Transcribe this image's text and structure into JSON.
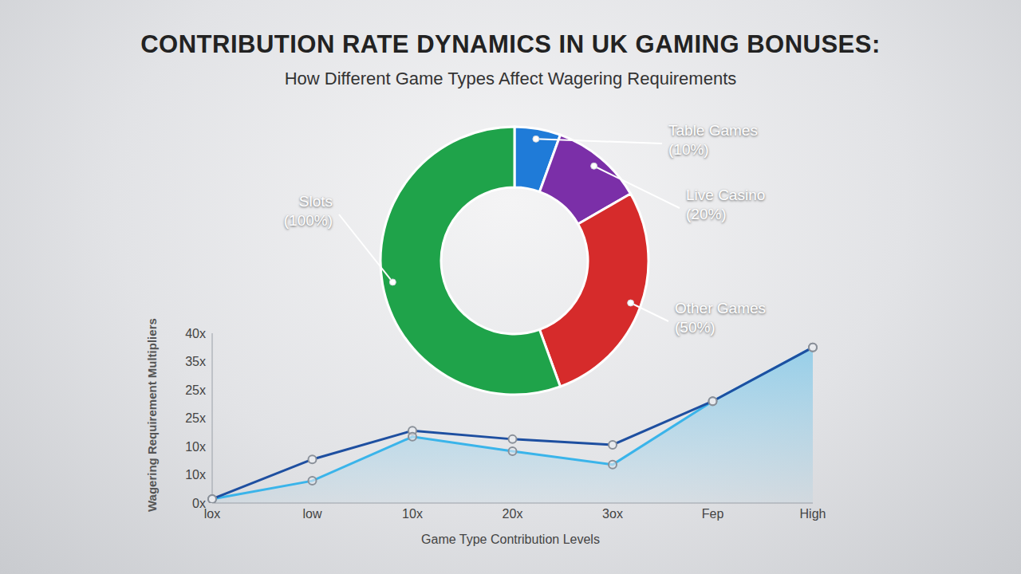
{
  "chart_data": [
    {
      "type": "pie",
      "title": "CONTRIBUTION RATE DYNAMICS IN UK GAMING BONUSES:",
      "subtitle": "How Different Game Types Affect Wagering Requirements",
      "categories": [
        "Table Games",
        "Live Casino",
        "Other Games",
        "Slots"
      ],
      "values": [
        10,
        20,
        50,
        100
      ],
      "value_labels": [
        "(10%)",
        "(20%)",
        "(50%)",
        "(100%)"
      ],
      "colors": [
        "#1f7bd8",
        "#7b2fa8",
        "#d62b2b",
        "#1fa34a"
      ],
      "data_labels": true
    },
    {
      "type": "line",
      "x_label": "Game Type Contribution Levels",
      "y_label": "Wagering Requirement Multipliers",
      "categories": [
        "lox",
        "low",
        "10x",
        "20x",
        "3ox",
        "Fep",
        "High"
      ],
      "ylim": [
        0,
        42
      ],
      "yticks": [
        {
          "value": 0,
          "label": "0x"
        },
        {
          "value": 7,
          "label": "10x"
        },
        {
          "value": 14,
          "label": "10x"
        },
        {
          "value": 21,
          "label": "25x"
        },
        {
          "value": 28,
          "label": "25x"
        },
        {
          "value": 35,
          "label": "35x"
        },
        {
          "value": 42,
          "label": "40x"
        }
      ],
      "grid": false,
      "series": [
        {
          "type": "line",
          "color": "#1e4fa0",
          "marker": "circle",
          "values": [
            1,
            10.8,
            17.9,
            15.8,
            14.4,
            25.2,
            38.5
          ]
        },
        {
          "type": "area",
          "color": "#3ab4ea",
          "marker": "circle",
          "values": [
            1,
            5.5,
            16.4,
            12.8,
            9.5,
            25.2,
            38.5
          ]
        }
      ]
    }
  ]
}
